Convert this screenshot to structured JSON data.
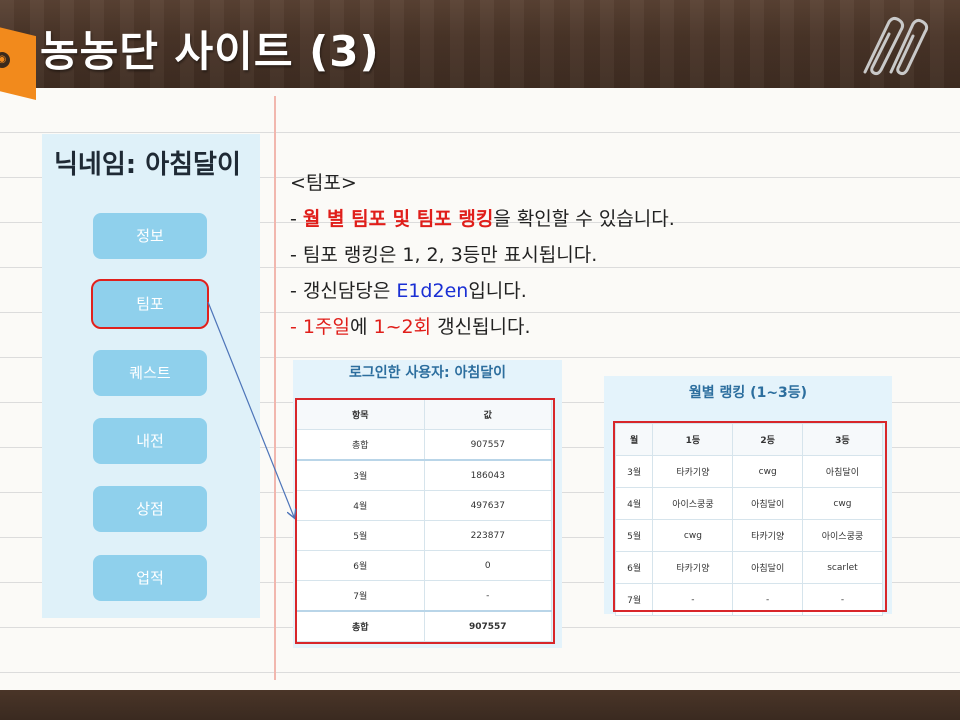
{
  "title": "농농단 사이트 (3)",
  "panel": {
    "nickname": "닉네임: 아침달이",
    "menu": [
      "정보",
      "팀포",
      "퀘스트",
      "내전",
      "상점",
      "업적"
    ]
  },
  "notes": {
    "heading": "<팀포>",
    "line1_prefix": "- ",
    "line1_red": "월 별 팀포 및 팀포 랭킹",
    "line1_rest": "을 확인할 수 있습니다.",
    "line2": "- 팀포 랭킹은 1, 2, 3등만 표시됩니다.",
    "line3_prefix": "- 갱신담당은 ",
    "line3_blue": "E1d2en",
    "line3_rest": "입니다.",
    "line4_red": "- 1주일",
    "line4_mid": "에 ",
    "line4_red2": "1~2회",
    "line4_rest": " 갱신됩니다."
  },
  "user_table": {
    "caption": "로그인한 사용자: 아침달이",
    "headers": [
      "항목",
      "값"
    ],
    "rows": [
      [
        "총합",
        "907557"
      ],
      [
        "3월",
        "186043"
      ],
      [
        "4월",
        "497637"
      ],
      [
        "5월",
        "223877"
      ],
      [
        "6월",
        "0"
      ],
      [
        "7월",
        "-"
      ],
      [
        "총합",
        "907557"
      ]
    ]
  },
  "ranking_table": {
    "caption": "월별 랭킹 (1~3등)",
    "headers": [
      "월",
      "1등",
      "2등",
      "3등"
    ],
    "rows": [
      [
        "3월",
        "타카기양",
        "cwg",
        "아침달이"
      ],
      [
        "4월",
        "아이스쿵쿵",
        "아침달이",
        "cwg"
      ],
      [
        "5월",
        "cwg",
        "타카기양",
        "아이스쿵쿵"
      ],
      [
        "6월",
        "타카기양",
        "아침달이",
        "scarlet"
      ],
      [
        "7월",
        "-",
        "-",
        "-"
      ]
    ]
  },
  "colors": {
    "accent_red": "#e01e1a",
    "accent_blue": "#1a2fd4",
    "button": "#8fd0ec",
    "tag_orange": "#f28a1c"
  },
  "icons": [
    "paperclip-icon",
    "tag-icon"
  ]
}
